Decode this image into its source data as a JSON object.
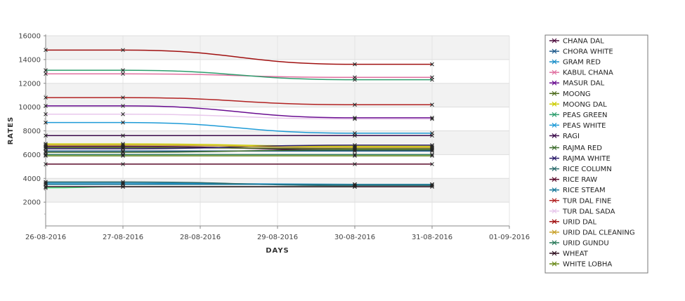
{
  "chart_data": {
    "type": "line",
    "title": "",
    "xlabel": "DAYS",
    "ylabel": "RATES",
    "x_ticks": [
      "26-08-2016",
      "27-08-2016",
      "28-08-2016",
      "29-08-2016",
      "30-08-2016",
      "31-08-2016",
      "01-09-2016"
    ],
    "xlim": [
      "26-08-2016",
      "01-09-2016"
    ],
    "y_ticks": [
      2000,
      4000,
      6000,
      8000,
      10000,
      12000,
      14000,
      16000
    ],
    "ylim": [
      0,
      16000
    ],
    "grid": "horizontal bands",
    "legend_position": "right",
    "series": [
      {
        "name": "CHANA DAL",
        "color": "#4b0a3c",
        "points": [
          [
            "26-08-2016",
            6700
          ],
          [
            "27-08-2016",
            6700
          ],
          [
            "30-08-2016",
            6400
          ],
          [
            "31-08-2016",
            6400
          ]
        ]
      },
      {
        "name": "CHORA WHITE",
        "color": "#1f5a8c",
        "points": [
          [
            "26-08-2016",
            6300
          ],
          [
            "27-08-2016",
            6300
          ],
          [
            "30-08-2016",
            6300
          ],
          [
            "31-08-2016",
            6300
          ]
        ]
      },
      {
        "name": "GRAM RED",
        "color": "#1a8fc9",
        "points": [
          [
            "26-08-2016",
            3600
          ],
          [
            "27-08-2016",
            3600
          ],
          [
            "30-08-2016",
            3500
          ],
          [
            "31-08-2016",
            3500
          ]
        ]
      },
      {
        "name": "KABUL CHANA",
        "color": "#e070a0",
        "points": [
          [
            "26-08-2016",
            12800
          ],
          [
            "27-08-2016",
            12800
          ],
          [
            "30-08-2016",
            12500
          ],
          [
            "31-08-2016",
            12500
          ]
        ]
      },
      {
        "name": "MASUR DAL",
        "color": "#6a0d91",
        "points": [
          [
            "26-08-2016",
            10100
          ],
          [
            "27-08-2016",
            10100
          ],
          [
            "30-08-2016",
            9100
          ],
          [
            "31-08-2016",
            9100
          ]
        ]
      },
      {
        "name": "MOONG",
        "color": "#4d6b1c",
        "points": [
          [
            "26-08-2016",
            6600
          ],
          [
            "27-08-2016",
            6600
          ],
          [
            "30-08-2016",
            6500
          ],
          [
            "31-08-2016",
            6500
          ]
        ]
      },
      {
        "name": "MOONG DAL",
        "color": "#cccc00",
        "points": [
          [
            "26-08-2016",
            6900
          ],
          [
            "27-08-2016",
            6900
          ],
          [
            "30-08-2016",
            6700
          ],
          [
            "31-08-2016",
            6700
          ]
        ]
      },
      {
        "name": "PEAS GREEN",
        "color": "#2e9e6e",
        "points": [
          [
            "26-08-2016",
            13100
          ],
          [
            "27-08-2016",
            13100
          ],
          [
            "30-08-2016",
            12300
          ],
          [
            "31-08-2016",
            12300
          ]
        ]
      },
      {
        "name": "PEAS WHITE",
        "color": "#1e9bd7",
        "points": [
          [
            "26-08-2016",
            8700
          ],
          [
            "27-08-2016",
            8700
          ],
          [
            "30-08-2016",
            7800
          ],
          [
            "31-08-2016",
            7800
          ]
        ]
      },
      {
        "name": "RAGI",
        "color": "#3a0a4a",
        "points": [
          [
            "26-08-2016",
            7600
          ],
          [
            "27-08-2016",
            7600
          ],
          [
            "30-08-2016",
            7600
          ],
          [
            "31-08-2016",
            7600
          ]
        ]
      },
      {
        "name": "RAJMA RED",
        "color": "#3a6a2a",
        "points": [
          [
            "26-08-2016",
            6200
          ],
          [
            "27-08-2016",
            6200
          ],
          [
            "30-08-2016",
            6400
          ],
          [
            "31-08-2016",
            6400
          ]
        ]
      },
      {
        "name": "RAJMA WHITE",
        "color": "#2a1a6a",
        "points": [
          [
            "26-08-2016",
            6500
          ],
          [
            "27-08-2016",
            6500
          ],
          [
            "30-08-2016",
            6800
          ],
          [
            "31-08-2016",
            6800
          ]
        ]
      },
      {
        "name": "RICE COLUMN",
        "color": "#2a6a6a",
        "points": [
          [
            "26-08-2016",
            3700
          ],
          [
            "27-08-2016",
            3700
          ],
          [
            "30-08-2016",
            3400
          ],
          [
            "31-08-2016",
            3400
          ]
        ]
      },
      {
        "name": "RICE RAW",
        "color": "#5a0a2a",
        "points": [
          [
            "26-08-2016",
            5200
          ],
          [
            "27-08-2016",
            5200
          ],
          [
            "30-08-2016",
            5200
          ],
          [
            "31-08-2016",
            5200
          ]
        ]
      },
      {
        "name": "RICE STEAM",
        "color": "#1a7a9a",
        "points": [
          [
            "26-08-2016",
            3500
          ],
          [
            "27-08-2016",
            3500
          ],
          [
            "30-08-2016",
            3500
          ],
          [
            "31-08-2016",
            3500
          ]
        ]
      },
      {
        "name": "TUR DAL FINE",
        "color": "#b22222",
        "points": [
          [
            "26-08-2016",
            10800
          ],
          [
            "27-08-2016",
            10800
          ],
          [
            "30-08-2016",
            10200
          ],
          [
            "31-08-2016",
            10200
          ]
        ]
      },
      {
        "name": "TUR DAL SADA",
        "color": "#e8c8ec",
        "points": [
          [
            "26-08-2016",
            9400
          ],
          [
            "27-08-2016",
            9400
          ],
          [
            "30-08-2016",
            9000
          ],
          [
            "31-08-2016",
            9000
          ]
        ]
      },
      {
        "name": "URID DAL",
        "color": "#a01010",
        "points": [
          [
            "26-08-2016",
            14800
          ],
          [
            "27-08-2016",
            14800
          ],
          [
            "30-08-2016",
            13600
          ],
          [
            "31-08-2016",
            13600
          ]
        ]
      },
      {
        "name": "URID DAL CLEANING",
        "color": "#c8a028",
        "points": [
          [
            "26-08-2016",
            6800
          ],
          [
            "27-08-2016",
            6800
          ],
          [
            "30-08-2016",
            6600
          ],
          [
            "31-08-2016",
            6600
          ]
        ]
      },
      {
        "name": "URID GUNDU",
        "color": "#2a7a5a",
        "points": [
          [
            "26-08-2016",
            6000
          ],
          [
            "27-08-2016",
            6000
          ],
          [
            "30-08-2016",
            6000
          ],
          [
            "31-08-2016",
            6000
          ]
        ]
      },
      {
        "name": "WHEAT",
        "color": "#2a0a1a",
        "points": [
          [
            "26-08-2016",
            3300
          ],
          [
            "27-08-2016",
            3300
          ],
          [
            "30-08-2016",
            3300
          ],
          [
            "31-08-2016",
            3300
          ]
        ]
      },
      {
        "name": "WHITE LOBHA",
        "color": "#6a8a1a",
        "points": [
          [
            "26-08-2016",
            5900
          ],
          [
            "27-08-2016",
            5900
          ],
          [
            "30-08-2016",
            5900
          ],
          [
            "31-08-2016",
            5900
          ]
        ]
      }
    ],
    "extra_lines": [
      {
        "color": "#55ee88",
        "points": [
          [
            "26-08-2016",
            3200
          ],
          [
            "27-08-2016",
            3300
          ],
          [
            "30-08-2016",
            3300
          ]
        ]
      }
    ]
  }
}
